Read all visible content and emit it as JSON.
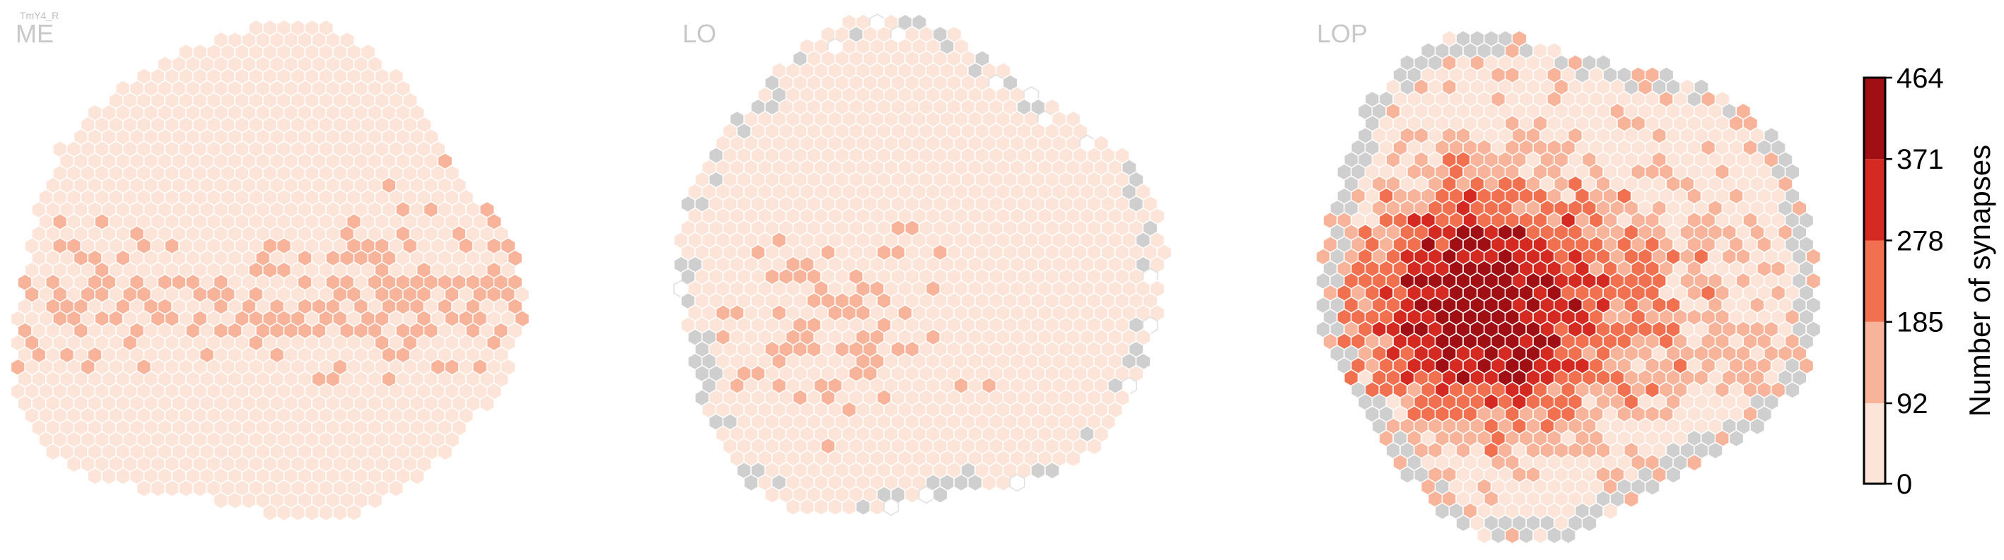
{
  "figure": {
    "cell_type_label": "TmY4_R",
    "panels": [
      {
        "title": "ME"
      },
      {
        "title": "LO"
      },
      {
        "title": "LOP"
      }
    ]
  },
  "chart_data": {
    "type": "heatmap",
    "subtype": "hexagonal column map",
    "colorbar": {
      "label": "Number of synapses",
      "ticks": [
        0,
        92,
        185,
        278,
        371,
        464
      ],
      "tick_labels": [
        "0",
        "92",
        "185",
        "278",
        "371",
        "464"
      ],
      "bins": [
        {
          "range": [
            0,
            92
          ],
          "color": "#fde4d9"
        },
        {
          "range": [
            92,
            185
          ],
          "color": "#f8b49a"
        },
        {
          "range": [
            185,
            278
          ],
          "color": "#f0704f"
        },
        {
          "range": [
            278,
            371
          ],
          "color": "#d42a21"
        },
        {
          "range": [
            371,
            464
          ],
          "color": "#9f0f14"
        }
      ],
      "min": 0,
      "max": 464
    },
    "no_data_color": "#cfcfcf",
    "empty_column_color": "#ffffff",
    "panels": [
      {
        "name": "ME",
        "column_grid": "hexagonal, about 30 columns across",
        "notable_regions": "mostly 0-92; band of 92-185 columns across the middle"
      },
      {
        "name": "LO",
        "column_grid": "hexagonal, about 30 columns across",
        "notable_regions": "mostly 0-92; scattered 92-185 columns lower-left; grey columns along rim"
      },
      {
        "name": "LOP",
        "column_grid": "hexagonal, about 30 columns across",
        "notable_regions": "dense 185-464 hotspot left-center; grey columns around rim"
      }
    ]
  }
}
